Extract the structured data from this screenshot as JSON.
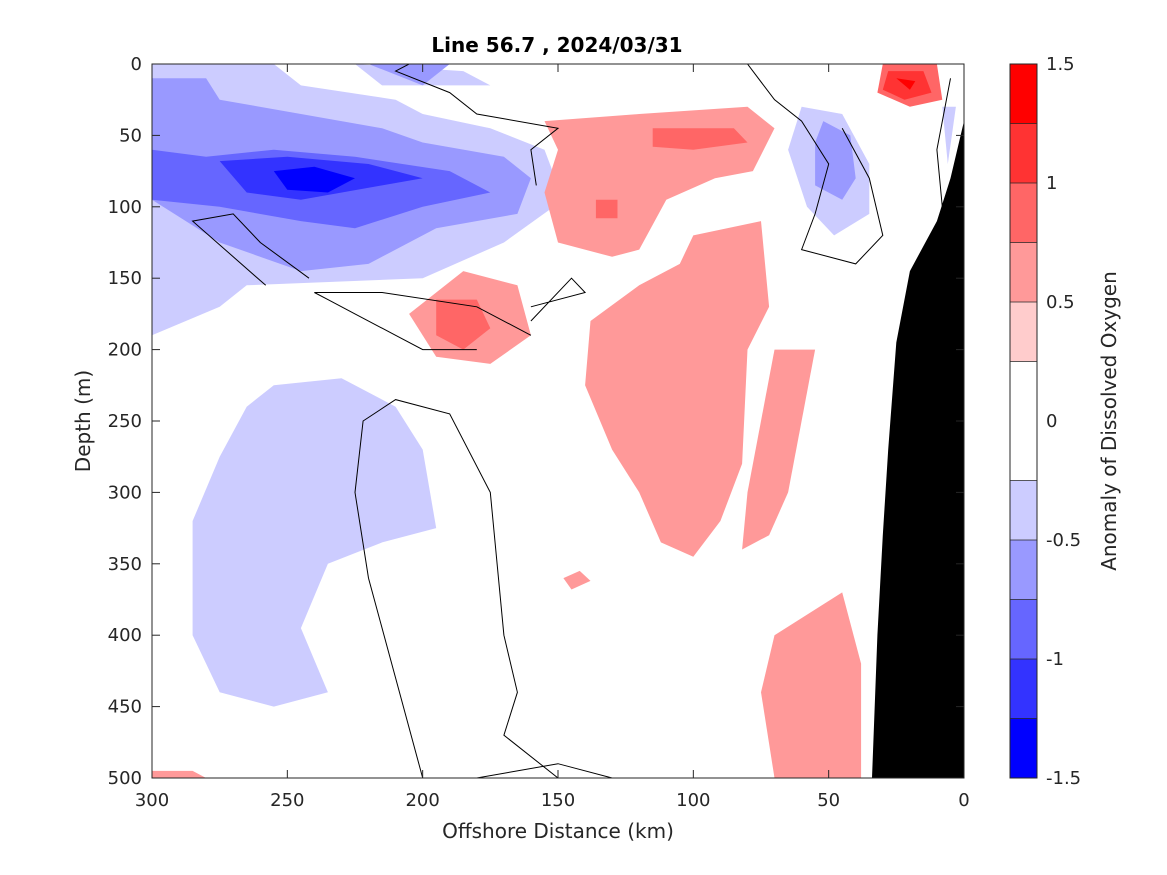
{
  "chart_data": {
    "type": "heatmap",
    "title": "Line 56.7 , 2024/03/31",
    "xlabel": "Offshore Distance (km)",
    "ylabel": "Depth (m)",
    "colorbar_label": "Anomaly of Dissolved Oxygen",
    "xlim": [
      300,
      0
    ],
    "ylim": [
      0,
      500
    ],
    "x_ticks": [
      "300",
      "250",
      "200",
      "150",
      "100",
      "50",
      "0"
    ],
    "x_tick_values": [
      300,
      250,
      200,
      150,
      100,
      50,
      0
    ],
    "y_ticks": [
      "0",
      "50",
      "100",
      "150",
      "200",
      "250",
      "300",
      "350",
      "400",
      "450",
      "500"
    ],
    "y_tick_values": [
      0,
      50,
      100,
      150,
      200,
      250,
      300,
      350,
      400,
      450,
      500
    ],
    "colorbar": {
      "range": [
        -1.5,
        1.5
      ],
      "tick_labels": [
        "1.5",
        "1",
        "0.5",
        "0",
        "-0.5",
        "-1",
        "-1.5"
      ],
      "tick_values": [
        1.5,
        1,
        0.5,
        0,
        -0.5,
        -1,
        -1.5
      ],
      "levels": [
        -1.5,
        -1.25,
        -1.0,
        -0.75,
        -0.5,
        -0.25,
        0.25,
        0.5,
        0.75,
        1.0,
        1.25,
        1.5
      ],
      "colors": [
        "#0000ff",
        "#3333ff",
        "#6666ff",
        "#9999ff",
        "#ccccff",
        "#ffffff",
        "#ffcccc",
        "#ff9999",
        "#ff6666",
        "#ff3333",
        "#ff0000"
      ]
    },
    "bathymetry_color": "#000000",
    "zero_contour_color": "#000000",
    "regions": [
      {
        "level": -0.5,
        "points": [
          [
            300,
            0
          ],
          [
            255,
            0
          ],
          [
            245,
            15
          ],
          [
            210,
            25
          ],
          [
            200,
            35
          ],
          [
            175,
            45
          ],
          [
            155,
            60
          ],
          [
            148,
            95
          ],
          [
            170,
            125
          ],
          [
            200,
            150
          ],
          [
            265,
            155
          ],
          [
            275,
            170
          ],
          [
            300,
            190
          ]
        ]
      },
      {
        "level": -0.5,
        "points": [
          [
            225,
            0
          ],
          [
            185,
            5
          ],
          [
            175,
            15
          ],
          [
            215,
            15
          ]
        ]
      },
      {
        "level": -0.75,
        "points": [
          [
            300,
            10
          ],
          [
            280,
            10
          ],
          [
            275,
            25
          ],
          [
            245,
            35
          ],
          [
            215,
            45
          ],
          [
            200,
            55
          ],
          [
            170,
            65
          ],
          [
            160,
            80
          ],
          [
            165,
            105
          ],
          [
            195,
            115
          ],
          [
            220,
            140
          ],
          [
            245,
            145
          ],
          [
            275,
            125
          ],
          [
            300,
            95
          ]
        ]
      },
      {
        "level": -0.75,
        "points": [
          [
            220,
            0
          ],
          [
            190,
            0
          ],
          [
            200,
            15
          ]
        ]
      },
      {
        "level": -1.0,
        "points": [
          [
            300,
            60
          ],
          [
            280,
            65
          ],
          [
            255,
            60
          ],
          [
            225,
            65
          ],
          [
            190,
            75
          ],
          [
            175,
            90
          ],
          [
            200,
            100
          ],
          [
            225,
            115
          ],
          [
            245,
            110
          ],
          [
            275,
            100
          ],
          [
            300,
            95
          ]
        ]
      },
      {
        "level": -1.25,
        "points": [
          [
            275,
            68
          ],
          [
            250,
            65
          ],
          [
            220,
            70
          ],
          [
            200,
            80
          ],
          [
            215,
            85
          ],
          [
            245,
            95
          ],
          [
            265,
            90
          ]
        ]
      },
      {
        "level": -1.5,
        "points": [
          [
            255,
            75
          ],
          [
            240,
            72
          ],
          [
            225,
            80
          ],
          [
            235,
            90
          ],
          [
            250,
            88
          ]
        ]
      },
      {
        "level": -0.5,
        "points": [
          [
            255,
            225
          ],
          [
            230,
            220
          ],
          [
            210,
            240
          ],
          [
            200,
            270
          ],
          [
            195,
            325
          ],
          [
            215,
            335
          ],
          [
            235,
            350
          ],
          [
            245,
            395
          ],
          [
            235,
            440
          ],
          [
            255,
            450
          ],
          [
            275,
            440
          ],
          [
            285,
            400
          ],
          [
            285,
            320
          ],
          [
            275,
            275
          ],
          [
            265,
            240
          ]
        ]
      },
      {
        "level": -0.5,
        "points": [
          [
            60,
            30
          ],
          [
            45,
            35
          ],
          [
            35,
            70
          ],
          [
            35,
            105
          ],
          [
            48,
            120
          ],
          [
            58,
            100
          ],
          [
            65,
            60
          ]
        ]
      },
      {
        "level": -0.75,
        "points": [
          [
            52,
            40
          ],
          [
            42,
            50
          ],
          [
            40,
            80
          ],
          [
            45,
            95
          ],
          [
            55,
            85
          ],
          [
            55,
            55
          ]
        ]
      },
      {
        "level": -0.5,
        "points": [
          [
            8,
            30
          ],
          [
            3,
            30
          ],
          [
            6,
            70
          ]
        ]
      },
      {
        "level": 0.5,
        "points": [
          [
            155,
            40
          ],
          [
            120,
            35
          ],
          [
            80,
            30
          ],
          [
            70,
            45
          ],
          [
            78,
            75
          ],
          [
            92,
            80
          ],
          [
            110,
            95
          ],
          [
            120,
            130
          ],
          [
            130,
            135
          ],
          [
            150,
            125
          ],
          [
            155,
            90
          ],
          [
            150,
            60
          ]
        ]
      },
      {
        "level": 0.5,
        "points": [
          [
            100,
            120
          ],
          [
            75,
            110
          ],
          [
            72,
            170
          ],
          [
            80,
            200
          ],
          [
            82,
            280
          ],
          [
            90,
            320
          ],
          [
            100,
            345
          ],
          [
            112,
            335
          ],
          [
            120,
            300
          ],
          [
            130,
            270
          ],
          [
            140,
            225
          ],
          [
            138,
            180
          ],
          [
            120,
            155
          ],
          [
            105,
            140
          ]
        ]
      },
      {
        "level": 0.5,
        "points": [
          [
            55,
            200
          ],
          [
            60,
            250
          ],
          [
            65,
            300
          ],
          [
            72,
            330
          ],
          [
            82,
            340
          ],
          [
            80,
            300
          ],
          [
            75,
            250
          ],
          [
            70,
            200
          ]
        ]
      },
      {
        "level": 0.5,
        "points": [
          [
            185,
            145
          ],
          [
            165,
            155
          ],
          [
            160,
            190
          ],
          [
            175,
            210
          ],
          [
            195,
            205
          ],
          [
            205,
            175
          ]
        ]
      },
      {
        "level": 0.5,
        "points": [
          [
            45,
            370
          ],
          [
            70,
            400
          ],
          [
            75,
            440
          ],
          [
            70,
            500
          ],
          [
            38,
            500
          ],
          [
            38,
            420
          ]
        ]
      },
      {
        "level": 0.5,
        "points": [
          [
            142,
            355
          ],
          [
            148,
            360
          ],
          [
            145,
            368
          ],
          [
            138,
            362
          ]
        ]
      },
      {
        "level": 0.5,
        "points": [
          [
            300,
            495
          ],
          [
            285,
            495
          ],
          [
            280,
            500
          ],
          [
            300,
            500
          ]
        ]
      },
      {
        "level": 0.75,
        "points": [
          [
            115,
            45
          ],
          [
            85,
            45
          ],
          [
            80,
            55
          ],
          [
            100,
            60
          ],
          [
            115,
            58
          ]
        ]
      },
      {
        "level": 0.75,
        "points": [
          [
            195,
            165
          ],
          [
            180,
            165
          ],
          [
            175,
            185
          ],
          [
            185,
            200
          ],
          [
            195,
            190
          ]
        ]
      },
      {
        "level": 0.75,
        "points": [
          [
            30,
            0
          ],
          [
            10,
            0
          ],
          [
            8,
            25
          ],
          [
            20,
            30
          ],
          [
            32,
            20
          ]
        ]
      },
      {
        "level": 0.75,
        "points": [
          [
            136,
            95
          ],
          [
            128,
            95
          ],
          [
            128,
            108
          ],
          [
            136,
            108
          ]
        ]
      },
      {
        "level": 1.0,
        "points": [
          [
            28,
            5
          ],
          [
            15,
            5
          ],
          [
            12,
            20
          ],
          [
            22,
            25
          ],
          [
            30,
            18
          ]
        ]
      },
      {
        "level": 1.25,
        "points": [
          [
            25,
            10
          ],
          [
            18,
            12
          ],
          [
            20,
            18
          ]
        ]
      }
    ],
    "contours": [
      {
        "level": 0,
        "points": [
          [
            258,
            155
          ],
          [
            285,
            110
          ],
          [
            270,
            105
          ],
          [
            260,
            125
          ],
          [
            242,
            150
          ]
        ]
      },
      {
        "level": 0,
        "points": [
          [
            200,
            500
          ],
          [
            210,
            430
          ],
          [
            220,
            360
          ],
          [
            225,
            300
          ],
          [
            222,
            250
          ],
          [
            210,
            235
          ],
          [
            190,
            245
          ],
          [
            175,
            300
          ],
          [
            170,
            400
          ],
          [
            165,
            440
          ],
          [
            170,
            470
          ],
          [
            150,
            500
          ]
        ]
      },
      {
        "level": 0,
        "points": [
          [
            180,
            500
          ],
          [
            150,
            490
          ],
          [
            130,
            500
          ]
        ]
      },
      {
        "level": 0,
        "points": [
          [
            160,
            190
          ],
          [
            180,
            170
          ],
          [
            215,
            160
          ],
          [
            240,
            160
          ],
          [
            235,
            165
          ],
          [
            225,
            175
          ],
          [
            210,
            190
          ],
          [
            200,
            200
          ],
          [
            180,
            200
          ]
        ]
      },
      {
        "level": 0,
        "points": [
          [
            160,
            170
          ],
          [
            140,
            160
          ],
          [
            145,
            150
          ],
          [
            160,
            180
          ]
        ]
      },
      {
        "level": 0,
        "points": [
          [
            158,
            85
          ],
          [
            160,
            60
          ],
          [
            150,
            45
          ],
          [
            180,
            35
          ],
          [
            190,
            20
          ],
          [
            210,
            5
          ],
          [
            205,
            0
          ]
        ]
      },
      {
        "level": 0,
        "points": [
          [
            80,
            0
          ],
          [
            70,
            25
          ],
          [
            60,
            40
          ],
          [
            50,
            70
          ],
          [
            55,
            105
          ],
          [
            60,
            130
          ],
          [
            40,
            140
          ],
          [
            30,
            120
          ],
          [
            35,
            80
          ],
          [
            45,
            45
          ]
        ]
      },
      {
        "level": 0,
        "points": [
          [
            5,
            10
          ],
          [
            10,
            60
          ],
          [
            8,
            100
          ]
        ]
      }
    ],
    "bathymetry": [
      [
        0,
        40
      ],
      [
        5,
        80
      ],
      [
        10,
        110
      ],
      [
        20,
        145
      ],
      [
        25,
        195
      ],
      [
        28,
        270
      ],
      [
        30,
        330
      ],
      [
        32,
        400
      ],
      [
        34,
        500
      ],
      [
        0,
        500
      ]
    ]
  }
}
